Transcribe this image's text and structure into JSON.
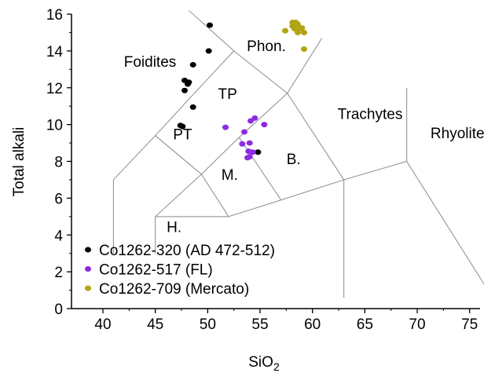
{
  "chart_data": {
    "type": "scatter",
    "xlabel": "SiO",
    "xlabel_subscript": "2",
    "ylabel": "Total alkali",
    "xlim": [
      37,
      76
    ],
    "ylim": [
      0,
      16
    ],
    "x_ticks": [
      40,
      45,
      50,
      55,
      60,
      65,
      70,
      75
    ],
    "y_ticks": [
      0,
      2,
      4,
      6,
      8,
      10,
      12,
      14,
      16
    ],
    "grid": false,
    "legend_position": "bottom-left",
    "field_boundaries": [
      [
        [
          41,
          3
        ],
        [
          41,
          7
        ]
      ],
      [
        [
          41,
          7
        ],
        [
          45,
          9.4
        ]
      ],
      [
        [
          45,
          9.4
        ],
        [
          48.4,
          11.5
        ]
      ],
      [
        [
          48.4,
          11.5
        ],
        [
          52.5,
          14
        ]
      ],
      [
        [
          52.5,
          14
        ],
        [
          57.6,
          11.7
        ]
      ],
      [
        [
          57.6,
          11.7
        ],
        [
          63,
          7
        ]
      ],
      [
        [
          63,
          7
        ],
        [
          69,
          8
        ]
      ],
      [
        [
          45,
          9.4
        ],
        [
          49.4,
          7.3
        ]
      ],
      [
        [
          49.4,
          7.3
        ],
        [
          53,
          9.3
        ]
      ],
      [
        [
          53,
          9.3
        ],
        [
          57.6,
          11.7
        ]
      ],
      [
        [
          45,
          3
        ],
        [
          45,
          5
        ]
      ],
      [
        [
          45,
          5
        ],
        [
          49.4,
          7.3
        ]
      ],
      [
        [
          45,
          5
        ],
        [
          52,
          5
        ]
      ],
      [
        [
          52,
          5
        ],
        [
          57,
          5.9
        ]
      ],
      [
        [
          57,
          5.9
        ],
        [
          63,
          7
        ]
      ],
      [
        [
          52,
          5
        ],
        [
          49.4,
          7.3
        ]
      ],
      [
        [
          57,
          5.9
        ],
        [
          53,
          9.3
        ]
      ],
      [
        [
          63,
          7
        ],
        [
          63,
          0.6
        ]
      ],
      [
        [
          69,
          8
        ],
        [
          69,
          12
        ]
      ],
      [
        [
          69,
          8
        ],
        [
          77.3,
          0.5
        ]
      ],
      [
        [
          52.5,
          14
        ],
        [
          48.2,
          16.2
        ]
      ],
      [
        [
          57.6,
          11.7
        ],
        [
          60.9,
          14.7
        ]
      ]
    ],
    "field_labels": [
      {
        "text": "Foidites",
        "x": 44.5,
        "y": 13.15
      },
      {
        "text": "Phon.",
        "x": 55.6,
        "y": 14
      },
      {
        "text": "TP",
        "x": 51.9,
        "y": 11.4
      },
      {
        "text": "PT",
        "x": 47.6,
        "y": 9.2
      },
      {
        "text": "Trachytes",
        "x": 65.5,
        "y": 10.3
      },
      {
        "text": "Rhyolites",
        "x": 74.2,
        "y": 9.25
      },
      {
        "text": "B.",
        "x": 58.2,
        "y": 7.85
      },
      {
        "text": "M.",
        "x": 52.1,
        "y": 7
      },
      {
        "text": "H.",
        "x": 46.8,
        "y": 4.15
      }
    ],
    "series": [
      {
        "name": "Co1262-320 (AD 472-512)",
        "color": "#000000",
        "points": [
          [
            50.2,
            15.4
          ],
          [
            50.1,
            14.0
          ],
          [
            48.6,
            13.25
          ],
          [
            47.8,
            12.4
          ],
          [
            48.2,
            12.3
          ],
          [
            48.1,
            12.2
          ],
          [
            47.8,
            11.85
          ],
          [
            48.6,
            10.95
          ],
          [
            47.4,
            9.95
          ],
          [
            47.6,
            9.9
          ],
          [
            54.8,
            8.5
          ]
        ]
      },
      {
        "name": "Co1262-517 (FL)",
        "color": "#8c2be2",
        "points": [
          [
            51.7,
            9.85
          ],
          [
            54.1,
            10.2
          ],
          [
            54.5,
            10.35
          ],
          [
            55.4,
            10.0
          ],
          [
            53.5,
            9.6
          ],
          [
            54.0,
            9.0
          ],
          [
            53.3,
            8.95
          ],
          [
            53.9,
            8.55
          ],
          [
            54.3,
            8.5
          ],
          [
            53.8,
            8.2
          ],
          [
            54.0,
            8.25
          ]
        ]
      },
      {
        "name": "Co1262-709 (Mercato)",
        "color": "#b0a411",
        "points": [
          [
            57.4,
            15.1
          ],
          [
            58.1,
            15.55
          ],
          [
            58.4,
            15.55
          ],
          [
            58.1,
            15.35
          ],
          [
            58.6,
            15.45
          ],
          [
            58.3,
            15.2
          ],
          [
            58.8,
            15.2
          ],
          [
            59.0,
            15.25
          ],
          [
            58.6,
            15.0
          ],
          [
            59.2,
            15.0
          ],
          [
            59.2,
            14.1
          ]
        ]
      }
    ]
  }
}
